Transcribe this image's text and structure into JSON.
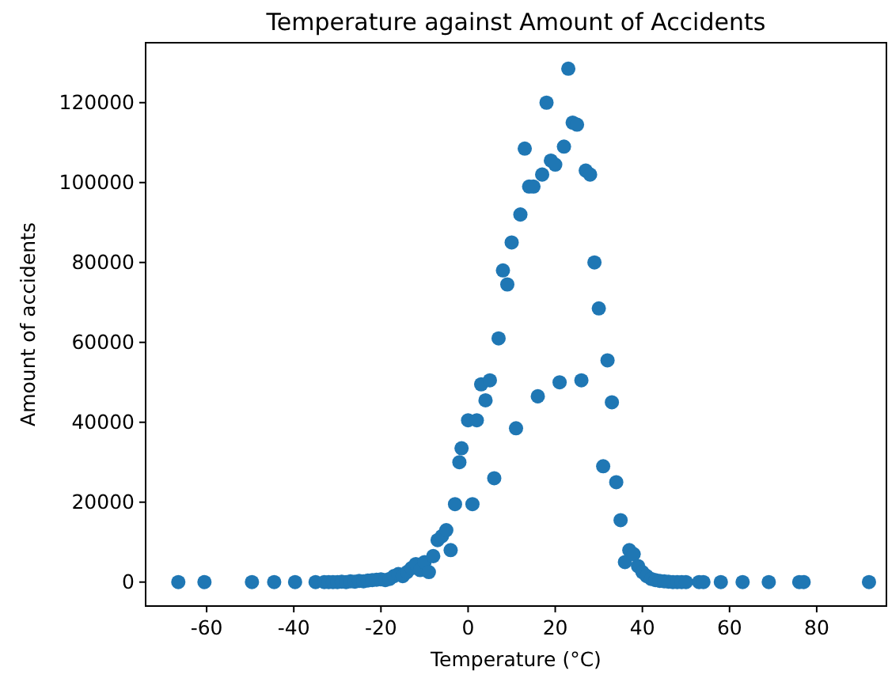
{
  "chart_data": {
    "type": "scatter",
    "title": "Temperature against Amount of Accidents",
    "xlabel": "Temperature (°C)",
    "ylabel": "Amount of accidents",
    "xlim": [
      -74,
      96
    ],
    "ylim": [
      -6000,
      135000
    ],
    "xticks": [
      -60,
      -40,
      -20,
      0,
      20,
      40,
      60,
      80
    ],
    "yticks": [
      0,
      20000,
      40000,
      60000,
      80000,
      100000,
      120000
    ],
    "marker": "circle",
    "series": [
      {
        "color": "#1f77b4",
        "x": [
          -66.5,
          -60.5,
          -49.6,
          -44.5,
          -39.7,
          -35,
          -33,
          -32,
          -31,
          -30,
          -29,
          -28,
          -27,
          -26,
          -25,
          -24,
          -23,
          -22,
          -21,
          -20,
          -19,
          -18,
          -17,
          -16,
          -15,
          -14,
          -13,
          -12,
          -11,
          -10,
          -9,
          -8,
          -7,
          -6,
          -5,
          -4,
          -3,
          -2,
          -1.5,
          0,
          1,
          2,
          3,
          4,
          5,
          6,
          7,
          8,
          9,
          10,
          11,
          12,
          13,
          14,
          15,
          16,
          17,
          18,
          19,
          20,
          21,
          22,
          23,
          24,
          25,
          26,
          27,
          28,
          29,
          30,
          31,
          32,
          33,
          34,
          35,
          36,
          37,
          38,
          39,
          40,
          41,
          42,
          43,
          44,
          45,
          46,
          47,
          48,
          49,
          50,
          53,
          54,
          58,
          63,
          69,
          76,
          77,
          92
        ],
        "values": [
          0,
          0,
          0,
          0,
          0,
          0,
          0,
          0,
          0,
          0,
          100,
          0,
          200,
          100,
          300,
          200,
          400,
          500,
          600,
          700,
          500,
          800,
          1500,
          2000,
          1500,
          2500,
          3500,
          4500,
          3000,
          5000,
          2500,
          6500,
          10500,
          11500,
          13000,
          8000,
          19500,
          30000,
          33500,
          40500,
          19500,
          40500,
          49500,
          45500,
          50500,
          26000,
          61000,
          78000,
          74500,
          85000,
          38500,
          92000,
          108500,
          99000,
          99000,
          46500,
          102000,
          120000,
          105500,
          104500,
          50000,
          109000,
          128500,
          115000,
          114500,
          50500,
          103000,
          102000,
          80000,
          68500,
          29000,
          55500,
          45000,
          25000,
          15500,
          5000,
          8000,
          7000,
          4000,
          2500,
          1500,
          800,
          500,
          300,
          200,
          100,
          0,
          0,
          0,
          0,
          0,
          0,
          0,
          0,
          0,
          0,
          0,
          0
        ]
      }
    ]
  }
}
